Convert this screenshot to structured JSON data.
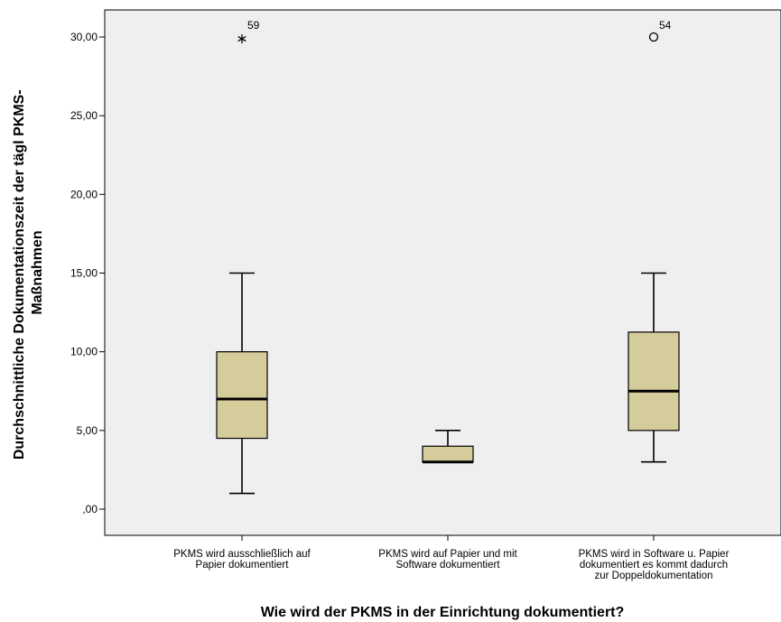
{
  "chart_data": {
    "type": "boxplot",
    "xlabel": "Wie wird der PKMS in der Einrichtung dokumentiert?",
    "ylabel_lines": [
      "Durchschnittliche Dokumentationszeit der tägl PKMS-",
      "Maßnahmen"
    ],
    "ylim": [
      -1.5,
      32
    ],
    "yticks": [
      0,
      5,
      10,
      15,
      20,
      25,
      30
    ],
    "ytick_labels": [
      ",00",
      "5,00",
      "10,00",
      "15,00",
      "20,00",
      "25,00",
      "30,00"
    ],
    "grid": false,
    "colors": {
      "plot_background": "#efefef",
      "box_fill": "#d4cc9b",
      "stroke": "#000000"
    },
    "categories": [
      {
        "label_lines": [
          "PKMS wird ausschließlich auf",
          "Papier dokumentiert"
        ],
        "whisker_low": 1,
        "q1": 4.5,
        "median": 7,
        "q3": 10,
        "whisker_high": 15,
        "outliers": [
          {
            "value": 30,
            "marker": "star",
            "label": "59"
          }
        ]
      },
      {
        "label_lines": [
          "PKMS wird auf Papier und mit",
          "Software dokumentiert"
        ],
        "whisker_low": 3,
        "q1": 3,
        "median": 3,
        "q3": 4,
        "whisker_high": 5,
        "outliers": []
      },
      {
        "label_lines": [
          "PKMS wird in Software u. Papier",
          "dokumentiert es kommt dadurch",
          "zur Doppeldokumentation"
        ],
        "whisker_low": 3,
        "q1": 5,
        "median": 7.5,
        "q3": 11.25,
        "whisker_high": 15,
        "outliers": [
          {
            "value": 30,
            "marker": "circle",
            "label": "54"
          }
        ]
      }
    ]
  }
}
